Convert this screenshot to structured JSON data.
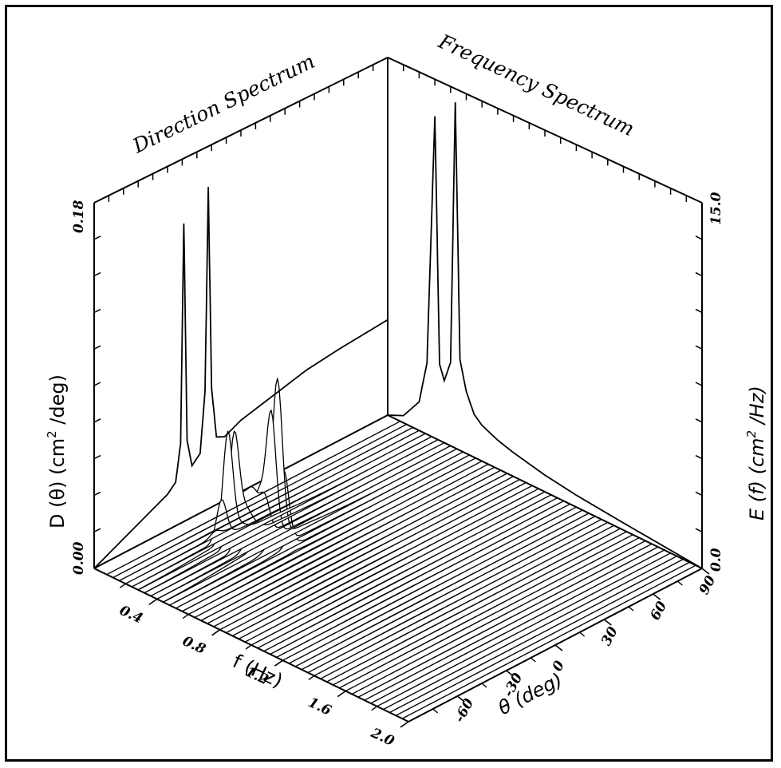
{
  "chart_data": {
    "type": "surface",
    "titles": {
      "direction": "Direction Spectrum",
      "frequency": "Frequency Spectrum"
    },
    "axes": {
      "f": {
        "label": "f (Hz)",
        "range": [
          0.0,
          2.0
        ],
        "ticks": [
          "0.4",
          "0.8",
          "1.2",
          "1.6",
          "2.0"
        ]
      },
      "theta": {
        "label": "θ (deg)",
        "range": [
          -90,
          90
        ],
        "ticks": [
          "-60",
          "-30",
          "0",
          "30",
          "60",
          "90"
        ]
      },
      "direction_spectrum": {
        "label": "D (θ) (cm² /deg)",
        "label_main": "D (θ) (cm",
        "label_sup": "2",
        "label_tail": " /deg)",
        "range": [
          0.0,
          0.18
        ],
        "tick_min": "0.00",
        "tick_max": "0.18"
      },
      "frequency_spectrum": {
        "label": "E (f) (cm² /Hz)",
        "label_main": "E (f) (cm",
        "label_sup": "2",
        "label_tail": " /Hz)",
        "range": [
          0.0,
          15.0
        ],
        "tick_min": "0.0",
        "tick_max": "15.0"
      }
    },
    "series": [
      {
        "name": "D(θ)",
        "x": [
          -90,
          -75,
          -60,
          -45,
          -40,
          -37,
          -35,
          -33,
          -30,
          -25,
          -22,
          -20,
          -18,
          -15,
          -10,
          0,
          20,
          40,
          60,
          90
        ],
        "values": [
          0.0,
          0.006,
          0.012,
          0.018,
          0.022,
          0.04,
          0.15,
          0.04,
          0.026,
          0.03,
          0.06,
          0.162,
          0.06,
          0.034,
          0.032,
          0.036,
          0.04,
          0.044,
          0.046,
          0.048
        ]
      },
      {
        "name": "E(f)",
        "x": [
          0.0,
          0.1,
          0.2,
          0.25,
          0.3,
          0.33,
          0.36,
          0.4,
          0.43,
          0.46,
          0.5,
          0.55,
          0.6,
          0.7,
          0.8,
          1.0,
          1.2,
          1.5,
          2.0
        ],
        "values": [
          0.0,
          0.3,
          1.2,
          3.0,
          13.5,
          3.2,
          2.6,
          3.5,
          14.5,
          3.8,
          2.6,
          1.8,
          1.5,
          1.2,
          1.0,
          0.7,
          0.5,
          0.3,
          0.0
        ]
      }
    ]
  }
}
